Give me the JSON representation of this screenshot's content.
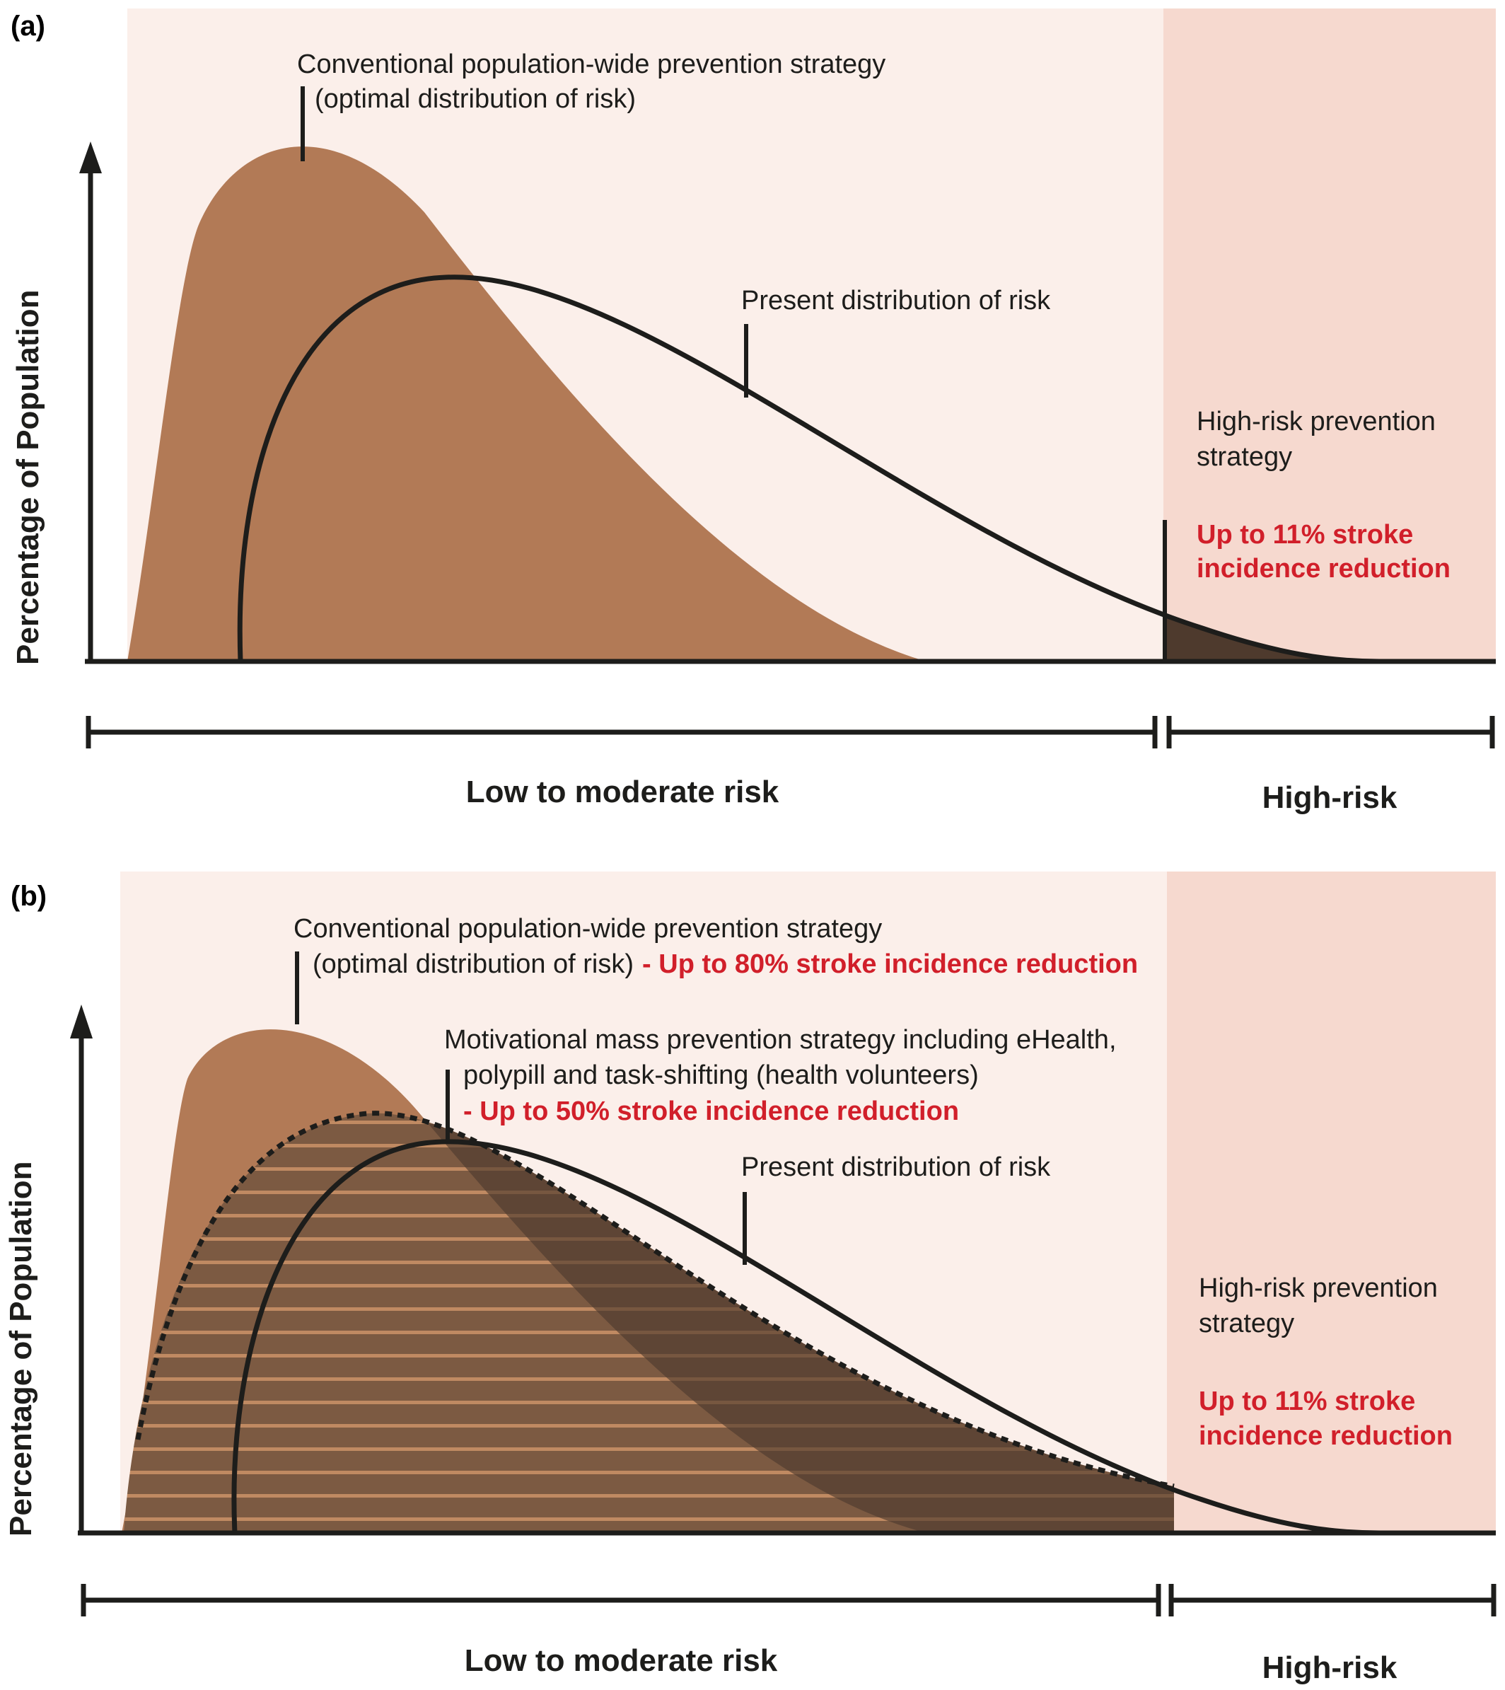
{
  "panels": [
    {
      "id": "a",
      "label": "(a)",
      "y_axis_label": "Percentage of Population",
      "conventional": {
        "line1": "Conventional population-wide prevention strategy",
        "line2": "(optimal distribution of risk)",
        "reduction": ""
      },
      "present": "Present distribution of risk",
      "high_risk_strategy": {
        "line1": "High-risk prevention",
        "line2": "strategy"
      },
      "high_risk_reduction": {
        "line1": "Up to 11% stroke",
        "line2": "incidence reduction"
      },
      "low_risk_label": "Low to moderate risk",
      "high_risk_label": "High-risk"
    },
    {
      "id": "b",
      "label": "(b)",
      "y_axis_label": "Percentage of Population",
      "conventional": {
        "line1": "Conventional population-wide prevention strategy",
        "line2": "(optimal distribution of risk)",
        "reduction": "- Up to 80% stroke incidence reduction"
      },
      "motivational": {
        "line1": "Motivational mass prevention strategy including eHealth,",
        "line2": "polypill and task-shifting (health volunteers)",
        "reduction": "- Up to 50% stroke incidence reduction"
      },
      "present": "Present distribution of risk",
      "high_risk_strategy": {
        "line1": "High-risk prevention",
        "line2": "strategy"
      },
      "high_risk_reduction": {
        "line1": "Up to 11% stroke",
        "line2": "incidence reduction"
      },
      "low_risk_label": "Low to moderate risk",
      "high_risk_label": "High-risk"
    }
  ],
  "colors": {
    "low_region_bg": "#fbefea",
    "high_region_bg": "#f6d9cf",
    "optimal_fill": "#b27a56",
    "motivational_fill": "#7c5a42",
    "overlap_fill": "#4e3a2d",
    "axis": "#1d1d1b",
    "highlight_red": "#d11f2a"
  }
}
